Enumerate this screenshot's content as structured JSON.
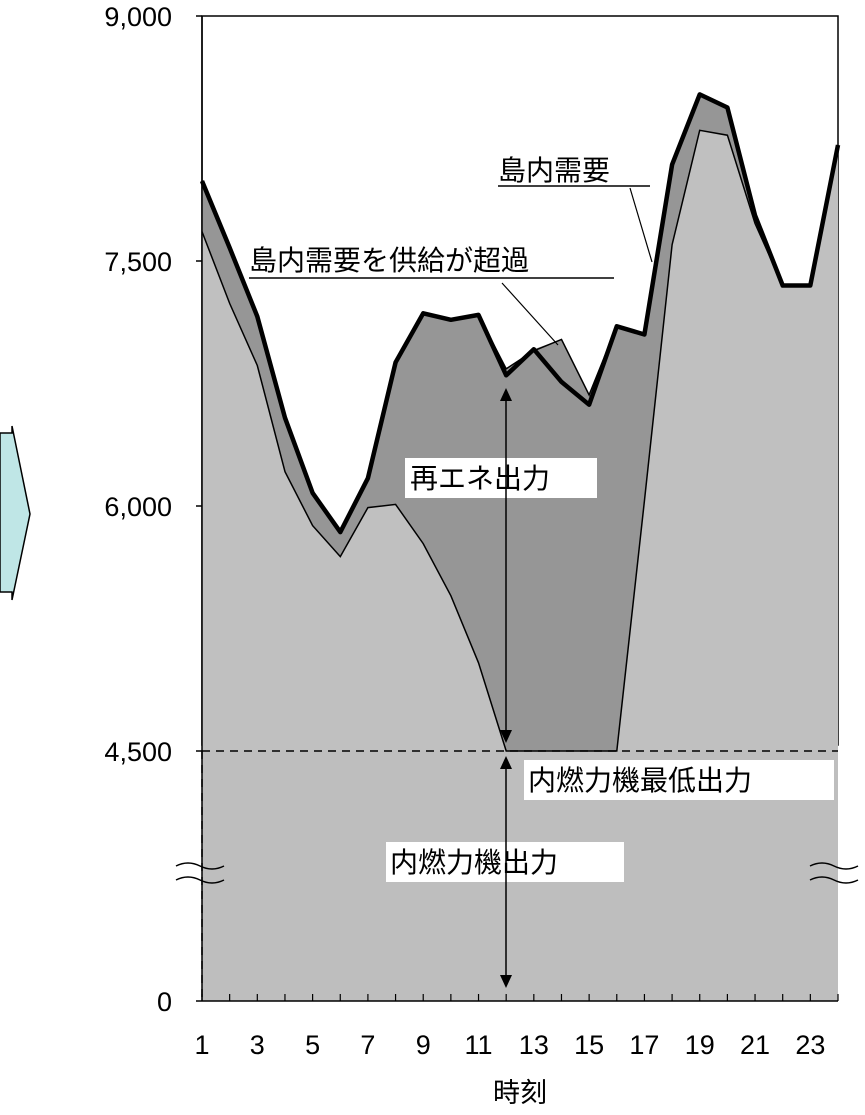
{
  "chart_data": {
    "type": "area",
    "x": [
      1,
      2,
      3,
      4,
      5,
      6,
      7,
      8,
      9,
      10,
      11,
      12,
      13,
      14,
      15,
      16,
      17,
      18,
      19,
      20,
      21,
      22,
      23,
      24
    ],
    "xticks": [
      "1",
      "3",
      "5",
      "7",
      "9",
      "11",
      "13",
      "15",
      "17",
      "19",
      "21",
      "23"
    ],
    "xlabel": "時刻",
    "yticks": [
      "0",
      "4,500",
      "6,000",
      "7,500",
      "9,000"
    ],
    "y_tick_values": [
      3000,
      4500,
      6000,
      7500,
      9000
    ],
    "y_axis_break": true,
    "ylim": [
      3000,
      9000
    ],
    "series": [
      {
        "name": "島内需要",
        "values": [
          7990,
          7580,
          7160,
          6540,
          6080,
          5840,
          6170,
          6880,
          7180,
          7140,
          7170,
          6800,
          6960,
          6760,
          6620,
          7100,
          7050,
          8090,
          8520,
          8440,
          7780,
          7350,
          7350,
          8210
        ]
      },
      {
        "name": "島内需要を供給が超過",
        "values": [
          7990,
          7580,
          7160,
          6540,
          6080,
          5840,
          6170,
          6880,
          7180,
          7140,
          7170,
          6840,
          6950,
          7020,
          6680,
          7100,
          7050,
          8090,
          8520,
          8440,
          7780,
          7350,
          7350,
          8210
        ]
      },
      {
        "values": [
          7680,
          7240,
          6860,
          6210,
          5880,
          5690,
          5990,
          6010,
          5770,
          5450,
          5040,
          4500,
          4500,
          4500,
          4500,
          4500,
          6030,
          7600,
          8300,
          8270,
          7730,
          7350,
          7350,
          8210
        ]
      }
    ],
    "min_output_level": 4500,
    "annotations": {
      "demand": "島内需要",
      "oversupply": "島内需要を供給が超過",
      "renewable_output": "再エネ出力",
      "min_output": "内燃力機最低出力",
      "ic_output": "内燃力機出力"
    },
    "colors": {
      "base_fill": "#c0c0c0",
      "renewable_fill": "#969696",
      "lower_fill": "#bebebe",
      "arrow_fill": "#bfe6e6"
    }
  }
}
